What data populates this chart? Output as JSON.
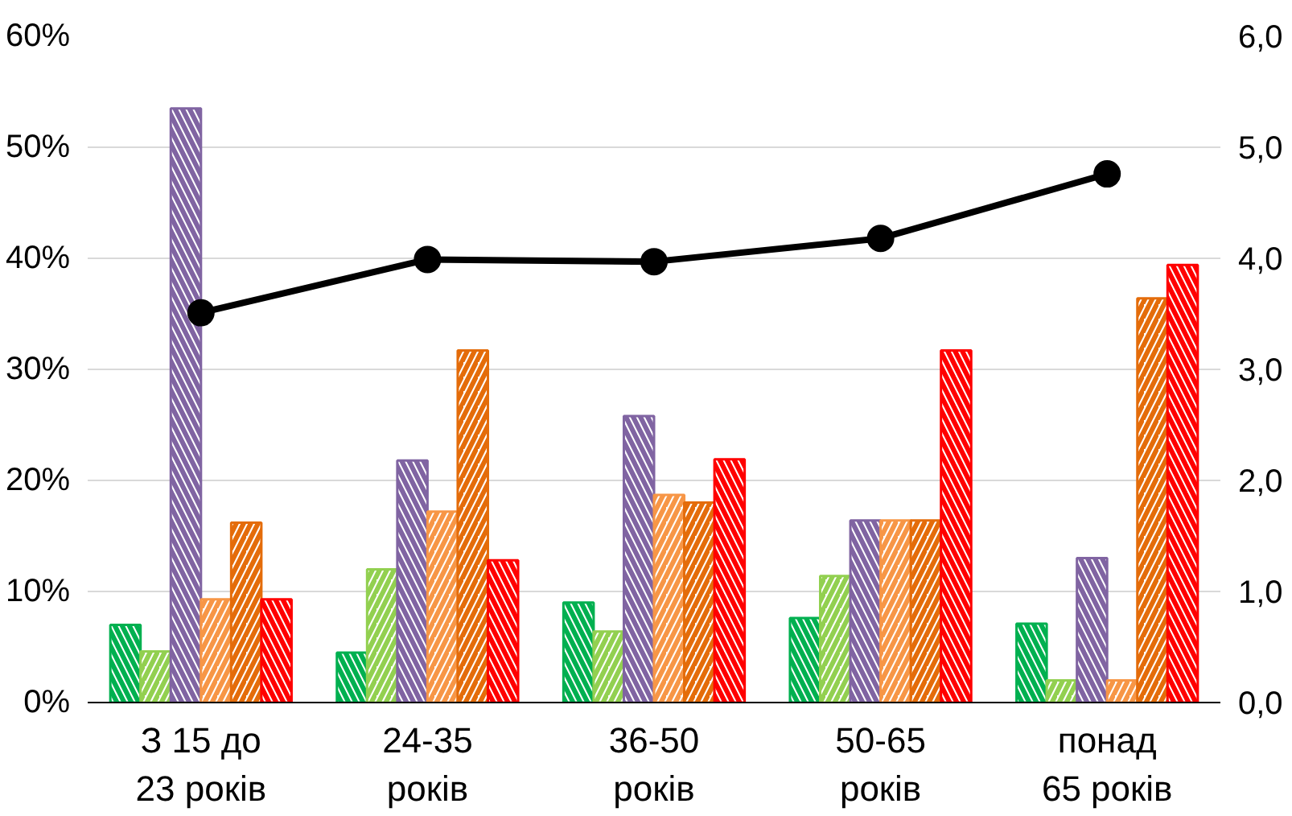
{
  "chart_data": {
    "type": "bar",
    "categories": [
      "З 15 до\n23 років",
      "24-35\nроків",
      "36-50\nроків",
      "50-65\nроків",
      "понад\n65 років"
    ],
    "series": [
      {
        "color": "#00b050",
        "values": [
          7.0,
          4.5,
          9.0,
          7.6,
          7.1
        ]
      },
      {
        "color": "#92d050",
        "values": [
          4.6,
          12.0,
          6.4,
          11.4,
          2.0
        ]
      },
      {
        "color": "#8064a2",
        "values": [
          53.5,
          21.8,
          25.8,
          16.4,
          13.0
        ]
      },
      {
        "color": "#f79646",
        "values": [
          9.3,
          17.2,
          18.7,
          16.4,
          2.0
        ]
      },
      {
        "color": "#e46c0a",
        "values": [
          16.2,
          31.7,
          18.0,
          16.4,
          36.4
        ]
      },
      {
        "color": "#ff0000",
        "values": [
          9.3,
          12.8,
          21.9,
          31.7,
          39.4
        ]
      },
      {
        "type": "line",
        "axis": "y2",
        "color": "#000000",
        "marker": "circle",
        "values": [
          3.51,
          3.99,
          3.97,
          4.18,
          4.76
        ]
      }
    ],
    "ylim": [
      0,
      60
    ],
    "yticks": [
      {
        "value": 0,
        "label": "0%"
      },
      {
        "value": 10,
        "label": "10%"
      },
      {
        "value": 20,
        "label": "20%"
      },
      {
        "value": 30,
        "label": "30%"
      },
      {
        "value": 40,
        "label": "40%"
      },
      {
        "value": 50,
        "label": "50%"
      },
      {
        "value": 60,
        "label": "60%"
      }
    ],
    "y2lim": [
      0,
      6
    ],
    "y2ticks": [
      {
        "value": 0,
        "label": "0,0"
      },
      {
        "value": 1,
        "label": "1,0"
      },
      {
        "value": 2,
        "label": "2,0"
      },
      {
        "value": 3,
        "label": "3,0"
      },
      {
        "value": 4,
        "label": "4,0"
      },
      {
        "value": 5,
        "label": "5,0"
      },
      {
        "value": 6,
        "label": "6,0"
      }
    ],
    "grid": "y"
  }
}
